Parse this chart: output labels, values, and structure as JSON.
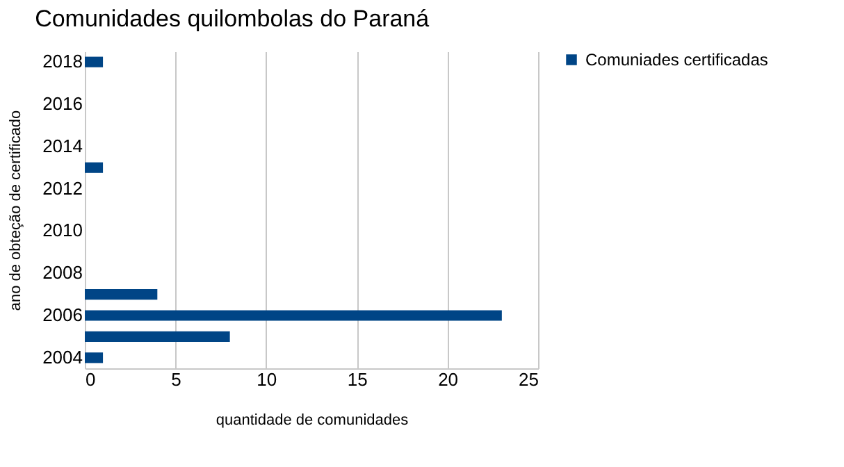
{
  "chart_data": {
    "type": "bar",
    "orientation": "horizontal",
    "title": "Comunidades quilombolas do Paraná",
    "xlabel": "quantidade de comunidades",
    "ylabel": "ano de obteção de certificado",
    "categories": [
      "2018",
      null,
      "2016",
      null,
      "2014",
      null,
      "2012",
      null,
      "2010",
      null,
      "2008",
      null,
      "2006",
      null,
      "2004"
    ],
    "series": [
      {
        "name": "Comuniades certificadas",
        "color": "#004586",
        "values": [
          1,
          null,
          null,
          null,
          null,
          1,
          null,
          null,
          null,
          null,
          null,
          4,
          23,
          8,
          1
        ]
      }
    ],
    "xlim": [
      0,
      25
    ],
    "xticks": [
      0,
      5,
      10,
      15,
      20,
      25
    ],
    "grid": "x",
    "legend": "right"
  }
}
